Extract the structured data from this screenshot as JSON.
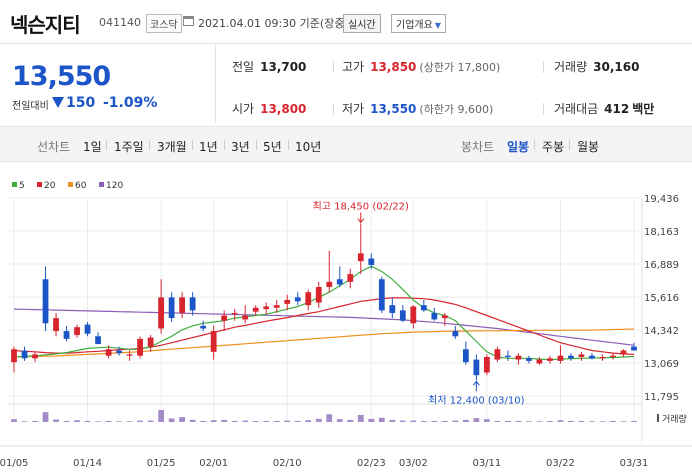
{
  "header": {
    "title": "넥슨지티",
    "code": "041140",
    "market": "코스닥",
    "datetime": "2021.04.01 09:30 기준(장중)",
    "realtime_btn": "실시간",
    "info_btn": "기업개요",
    "info_btn_arrow": "▼"
  },
  "price": {
    "current": "13,550",
    "prev_label": "전일대비",
    "change": "150",
    "change_pct": "-1.09%",
    "direction": "down"
  },
  "stats": {
    "prev_close": {
      "label": "전일",
      "value": "13,700"
    },
    "high": {
      "label": "고가",
      "value": "13,850",
      "sub": "(상한가 17,800)"
    },
    "volume": {
      "label": "거래량",
      "value": "30,160"
    },
    "open": {
      "label": "시가",
      "value": "13,800"
    },
    "low": {
      "label": "저가",
      "value": "13,550",
      "sub": "(하한가 9,600)"
    },
    "amount": {
      "label": "거래대금",
      "value": "412",
      "unit": "백만"
    }
  },
  "tabs": {
    "left_label": "선차트",
    "periods": [
      "1일",
      "1주일",
      "3개월",
      "1년",
      "3년",
      "5년",
      "10년"
    ],
    "right_label": "봉차트",
    "candles": [
      "일봉",
      "주봉",
      "월봉"
    ],
    "active_candle": "일봉"
  },
  "colors": {
    "up": "#d8242d",
    "down": "#1b55c8",
    "ma5": "#3fae3f",
    "ma20": "#d8242d",
    "ma60": "#f0901e",
    "ma120": "#8c5fb8",
    "volume": "#a38cc8"
  },
  "chart_data": {
    "type": "candlestick",
    "legend": [
      {
        "name": "5",
        "color": "#3fae3f"
      },
      {
        "name": "20",
        "color": "#d8242d"
      },
      {
        "name": "60",
        "color": "#f0901e"
      },
      {
        "name": "120",
        "color": "#8c5fb8"
      }
    ],
    "y_ticks": [
      "19,436",
      "18,163",
      "16,889",
      "15,616",
      "14,342",
      "13,069",
      "11,795"
    ],
    "ylim": [
      11795,
      19436
    ],
    "x_ticks": [
      {
        "label": "01/05",
        "index": 0
      },
      {
        "label": "01/14",
        "index": 7
      },
      {
        "label": "01/25",
        "index": 14
      },
      {
        "label": "02/01",
        "index": 19
      },
      {
        "label": "02/10",
        "index": 26
      },
      {
        "label": "02/23",
        "index": 34
      },
      {
        "label": "03/02",
        "index": 38
      },
      {
        "label": "03/11",
        "index": 45
      },
      {
        "label": "03/22",
        "index": 52
      },
      {
        "label": "03/31",
        "index": 59
      }
    ],
    "volume_label": "거래량",
    "max_annotation": {
      "text": "최고 18,450 (02/22)",
      "index": 33,
      "value": 18450
    },
    "min_annotation": {
      "text": "최저 12,400 (03/10)",
      "index": 44,
      "value": 12400
    },
    "candles": [
      {
        "o": 13100,
        "h": 13700,
        "l": 12700,
        "c": 13600
      },
      {
        "o": 13550,
        "h": 13700,
        "l": 13150,
        "c": 13250
      },
      {
        "o": 13250,
        "h": 13500,
        "l": 13100,
        "c": 13400
      },
      {
        "o": 16300,
        "h": 16800,
        "l": 14300,
        "c": 14600
      },
      {
        "o": 14300,
        "h": 15000,
        "l": 14100,
        "c": 14800
      },
      {
        "o": 14300,
        "h": 14500,
        "l": 13900,
        "c": 14000
      },
      {
        "o": 14150,
        "h": 14550,
        "l": 14050,
        "c": 14450
      },
      {
        "o": 14550,
        "h": 14650,
        "l": 14100,
        "c": 14200
      },
      {
        "o": 14100,
        "h": 14250,
        "l": 13800,
        "c": 13800
      },
      {
        "o": 13350,
        "h": 13750,
        "l": 13250,
        "c": 13600
      },
      {
        "o": 13550,
        "h": 13700,
        "l": 13350,
        "c": 13450
      },
      {
        "o": 13350,
        "h": 13550,
        "l": 13150,
        "c": 13400
      },
      {
        "o": 13350,
        "h": 14100,
        "l": 13250,
        "c": 14000
      },
      {
        "o": 13700,
        "h": 14150,
        "l": 13500,
        "c": 14050
      },
      {
        "o": 14400,
        "h": 16300,
        "l": 14200,
        "c": 15600
      },
      {
        "o": 15600,
        "h": 15800,
        "l": 14650,
        "c": 14800
      },
      {
        "o": 15000,
        "h": 15800,
        "l": 14800,
        "c": 15600
      },
      {
        "o": 15600,
        "h": 15800,
        "l": 14900,
        "c": 15100
      },
      {
        "o": 14500,
        "h": 14700,
        "l": 14300,
        "c": 14400
      },
      {
        "o": 13500,
        "h": 14500,
        "l": 13200,
        "c": 14300
      },
      {
        "o": 14700,
        "h": 15100,
        "l": 14300,
        "c": 14900
      },
      {
        "o": 14950,
        "h": 15150,
        "l": 14700,
        "c": 15000
      },
      {
        "o": 14750,
        "h": 15300,
        "l": 14600,
        "c": 14900
      },
      {
        "o": 15050,
        "h": 15300,
        "l": 14900,
        "c": 15200
      },
      {
        "o": 15150,
        "h": 15400,
        "l": 14950,
        "c": 15250
      },
      {
        "o": 15200,
        "h": 15500,
        "l": 15000,
        "c": 15300
      },
      {
        "o": 15350,
        "h": 15700,
        "l": 15100,
        "c": 15500
      },
      {
        "o": 15600,
        "h": 15800,
        "l": 15300,
        "c": 15450
      },
      {
        "o": 15300,
        "h": 15900,
        "l": 15100,
        "c": 15800
      },
      {
        "o": 15400,
        "h": 16200,
        "l": 15200,
        "c": 16000
      },
      {
        "o": 16000,
        "h": 17400,
        "l": 15800,
        "c": 16200
      },
      {
        "o": 16300,
        "h": 16800,
        "l": 16000,
        "c": 16100
      },
      {
        "o": 16200,
        "h": 16700,
        "l": 15950,
        "c": 16500
      },
      {
        "o": 17000,
        "h": 18450,
        "l": 16500,
        "c": 17300
      },
      {
        "o": 17100,
        "h": 17300,
        "l": 16700,
        "c": 16850
      },
      {
        "o": 16300,
        "h": 16400,
        "l": 15000,
        "c": 15100
      },
      {
        "o": 15300,
        "h": 15600,
        "l": 14800,
        "c": 15000
      },
      {
        "o": 15100,
        "h": 15300,
        "l": 14650,
        "c": 14700
      },
      {
        "o": 14600,
        "h": 15300,
        "l": 14400,
        "c": 15250
      },
      {
        "o": 15300,
        "h": 15500,
        "l": 15050,
        "c": 15100
      },
      {
        "o": 15000,
        "h": 15200,
        "l": 14700,
        "c": 14750
      },
      {
        "o": 14800,
        "h": 15000,
        "l": 14500,
        "c": 14900
      },
      {
        "o": 14300,
        "h": 14500,
        "l": 14000,
        "c": 14100
      },
      {
        "o": 13600,
        "h": 13900,
        "l": 13000,
        "c": 13100
      },
      {
        "o": 13200,
        "h": 13400,
        "l": 12400,
        "c": 12600
      },
      {
        "o": 12700,
        "h": 13400,
        "l": 12600,
        "c": 13300
      },
      {
        "o": 13200,
        "h": 13700,
        "l": 13100,
        "c": 13600
      },
      {
        "o": 13350,
        "h": 13550,
        "l": 13150,
        "c": 13300
      },
      {
        "o": 13200,
        "h": 13450,
        "l": 13000,
        "c": 13350
      },
      {
        "o": 13250,
        "h": 13350,
        "l": 13050,
        "c": 13150
      },
      {
        "o": 13050,
        "h": 13300,
        "l": 13000,
        "c": 13200
      },
      {
        "o": 13150,
        "h": 13350,
        "l": 13050,
        "c": 13250
      },
      {
        "o": 13150,
        "h": 13750,
        "l": 13050,
        "c": 13350
      },
      {
        "o": 13350,
        "h": 13450,
        "l": 13150,
        "c": 13250
      },
      {
        "o": 13300,
        "h": 13500,
        "l": 13150,
        "c": 13400
      },
      {
        "o": 13350,
        "h": 13450,
        "l": 13200,
        "c": 13250
      },
      {
        "o": 13250,
        "h": 13400,
        "l": 13150,
        "c": 13300
      },
      {
        "o": 13300,
        "h": 13450,
        "l": 13200,
        "c": 13350
      },
      {
        "o": 13400,
        "h": 13600,
        "l": 13300,
        "c": 13550
      },
      {
        "o": 13700,
        "h": 13850,
        "l": 13550,
        "c": 13550
      }
    ],
    "volume": [
      8,
      2,
      3,
      28,
      7,
      3,
      5,
      3,
      2,
      3,
      2,
      2,
      4,
      4,
      34,
      10,
      14,
      6,
      3,
      5,
      6,
      3,
      4,
      3,
      3,
      3,
      4,
      3,
      5,
      9,
      22,
      8,
      6,
      20,
      9,
      12,
      6,
      4,
      4,
      3,
      3,
      3,
      4,
      6,
      11,
      8,
      3,
      3,
      3,
      2,
      2,
      3,
      5,
      3,
      3,
      2,
      2,
      3,
      2,
      3
    ],
    "ma5": [
      13300,
      13330,
      13340,
      13380,
      13420,
      13470,
      13550,
      13630,
      13660,
      13680,
      13640,
      13590,
      13610,
      13690,
      13900,
      14100,
      14350,
      14500,
      14600,
      14650,
      14700,
      14800,
      14850,
      14900,
      14950,
      15050,
      15150,
      15250,
      15400,
      15600,
      15800,
      16050,
      16300,
      16600,
      16800,
      16600,
      16300,
      15900,
      15500,
      15200,
      15000,
      14900,
      14700,
      14300,
      13900,
      13500,
      13300,
      13250,
      13250,
      13250,
      13220,
      13200,
      13220,
      13240,
      13250,
      13260,
      13270,
      13280,
      13300,
      13320
    ],
    "ma20": [
      13550,
      13520,
      13500,
      13470,
      13450,
      13450,
      13470,
      13500,
      13520,
      13550,
      13580,
      13600,
      13630,
      13680,
      13750,
      13850,
      13950,
      14050,
      14150,
      14250,
      14350,
      14450,
      14520,
      14600,
      14680,
      14750,
      14820,
      14900,
      14980,
      15050,
      15150,
      15250,
      15350,
      15450,
      15500,
      15550,
      15580,
      15580,
      15570,
      15550,
      15500,
      15420,
      15330,
      15200,
      15050,
      14900,
      14750,
      14600,
      14450,
      14300,
      14150,
      14000,
      13850,
      13750,
      13650,
      13550,
      13500,
      13450,
      13420,
      13400
    ],
    "ma60": [
      13300,
      13310,
      13320,
      13330,
      13340,
      13360,
      13380,
      13400,
      13420,
      13440,
      13460,
      13480,
      13510,
      13540,
      13570,
      13600,
      13630,
      13660,
      13690,
      13720,
      13750,
      13780,
      13810,
      13840,
      13870,
      13900,
      13930,
      13960,
      13990,
      14020,
      14050,
      14080,
      14110,
      14140,
      14170,
      14200,
      14220,
      14240,
      14260,
      14270,
      14280,
      14290,
      14300,
      14300,
      14310,
      14310,
      14310,
      14320,
      14320,
      14320,
      14330,
      14330,
      14330,
      14340,
      14340,
      14340,
      14350,
      14360,
      14370,
      14380
    ],
    "ma120": [
      15150,
      15140,
      15130,
      15120,
      15110,
      15100,
      15090,
      15080,
      15070,
      15060,
      15050,
      15040,
      15030,
      15020,
      15010,
      15000,
      14990,
      14980,
      14970,
      14960,
      14950,
      14940,
      14930,
      14920,
      14910,
      14900,
      14890,
      14880,
      14870,
      14860,
      14850,
      14840,
      14830,
      14810,
      14790,
      14770,
      14750,
      14730,
      14700,
      14670,
      14640,
      14600,
      14560,
      14520,
      14480,
      14440,
      14400,
      14350,
      14300,
      14250,
      14200,
      14150,
      14100,
      14050,
      14000,
      13950,
      13900,
      13850,
      13800,
      13750
    ]
  }
}
